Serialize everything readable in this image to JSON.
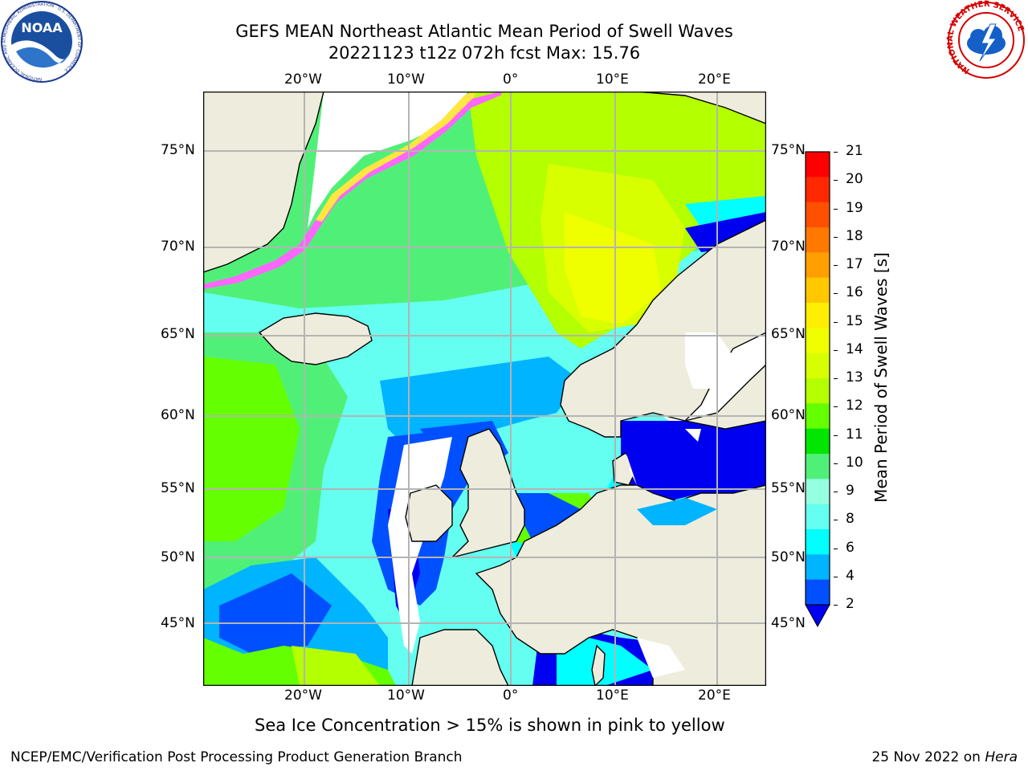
{
  "header": {
    "title_line1": "GEFS MEAN Northeast Atlantic Mean Period of Swell Waves",
    "title_line2": "20221123 t12z 072h fcst   Max: 15.76"
  },
  "logos": {
    "noaa_text": "NOAA",
    "noaa_ring": "NATIONAL OCEANIC AND ATMOSPHERIC ADMINISTRATION · U.S. DEPARTMENT OF COMMERCE",
    "nws_ring": "NATIONAL WEATHER SERVICE"
  },
  "map": {
    "lon_labels": [
      "20°W",
      "10°W",
      "0°",
      "10°E",
      "20°E"
    ],
    "lat_labels": [
      "75°N",
      "70°N",
      "65°N",
      "60°N",
      "55°N",
      "50°N",
      "45°N"
    ],
    "note": "Sea Ice Concentration > 15% is shown in pink to yellow",
    "colors": {
      "land": "#eeecdc",
      "grid": "#b4b4b4",
      "ice_pink": "#ff66ff",
      "ice_yellow": "#ffe640"
    }
  },
  "colorbar": {
    "label": "Mean Period of Swell Waves [s]",
    "ticks": [
      "21",
      "20",
      "19",
      "18",
      "17",
      "16",
      "15",
      "14",
      "13",
      "12",
      "11",
      "10",
      "9",
      "8",
      "6",
      "4",
      "2"
    ],
    "colors_top_to_bottom": [
      "#ff0000",
      "#ff2800",
      "#ff5000",
      "#ff7800",
      "#ffa000",
      "#ffc800",
      "#ffee00",
      "#f0ff00",
      "#d8ff00",
      "#b4ff00",
      "#64ff00",
      "#00e600",
      "#50f078",
      "#96ffe0",
      "#64fff0",
      "#00ffff",
      "#00b4ff",
      "#0050ff"
    ],
    "extend_color": "#0000f0"
  },
  "footer": {
    "left": "NCEP/EMC/Verification Post Processing Product Generation Branch",
    "date": "25 Nov 2022 on ",
    "machine": "Hera"
  }
}
